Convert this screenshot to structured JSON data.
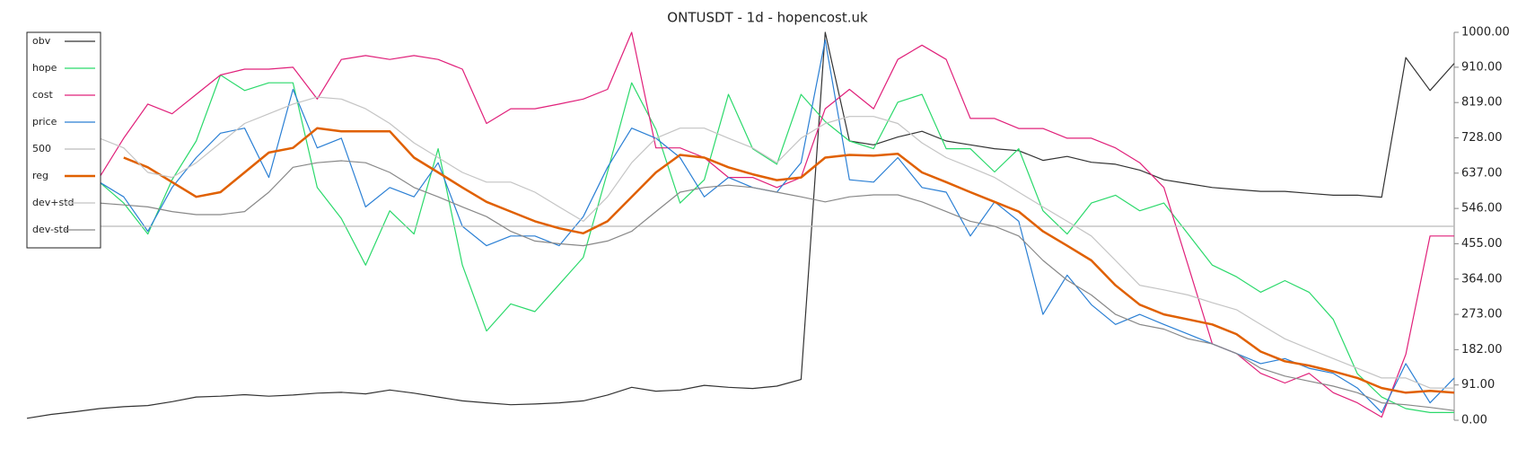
{
  "chart_data": {
    "type": "line",
    "title": "ONTUSDT - 1d - hopencost.uk",
    "ylim": [
      0,
      1000
    ],
    "yticks": [
      {
        "value": 0,
        "label": "0.00"
      },
      {
        "value": 91,
        "label": "91.00"
      },
      {
        "value": 182,
        "label": "182.00"
      },
      {
        "value": 273,
        "label": "273.00"
      },
      {
        "value": 364,
        "label": "364.00"
      },
      {
        "value": 455,
        "label": "455.00"
      },
      {
        "value": 546,
        "label": "546.00"
      },
      {
        "value": 637,
        "label": "637.00"
      },
      {
        "value": 728,
        "label": "728.00"
      },
      {
        "value": 819,
        "label": "819.00"
      },
      {
        "value": 910,
        "label": "910.00"
      },
      {
        "value": 1000,
        "label": "1000.00"
      }
    ],
    "legend": "upper left",
    "series": [
      {
        "name": "obv",
        "color": "#333333",
        "width": 1.2,
        "values": [
          5,
          15,
          22,
          30,
          35,
          38,
          48,
          60,
          62,
          66,
          62,
          65,
          70,
          72,
          68,
          78,
          70,
          60,
          50,
          45,
          40,
          42,
          45,
          50,
          65,
          85,
          75,
          78,
          90,
          85,
          82,
          88,
          105,
          1000,
          720,
          710,
          730,
          745,
          720,
          710,
          700,
          695,
          670,
          680,
          665,
          660,
          645,
          620,
          610,
          600,
          595,
          590,
          590,
          585,
          580,
          580,
          575,
          935,
          850,
          920
        ]
      },
      {
        "name": "hope",
        "color": "#2bd96b",
        "width": 1.2,
        "values": [
          null,
          null,
          null,
          614,
          560,
          480,
          620,
          720,
          890,
          850,
          870,
          870,
          600,
          520,
          400,
          540,
          480,
          700,
          400,
          230,
          300,
          280,
          350,
          420,
          640,
          870,
          750,
          560,
          620,
          840,
          700,
          660,
          840,
          770,
          720,
          700,
          820,
          840,
          700,
          700,
          640,
          700,
          540,
          480,
          560,
          580,
          540,
          560,
          480,
          400,
          370,
          330,
          360,
          330,
          260,
          120,
          60,
          30,
          20,
          20
        ]
      },
      {
        "name": "cost",
        "color": "#e0207a",
        "width": 1.2,
        "values": [
          null,
          null,
          null,
          626,
          727,
          815,
          790,
          840,
          890,
          905,
          905,
          910,
          828,
          930,
          940,
          930,
          940,
          930,
          905,
          765,
          803,
          803,
          815,
          828,
          853,
          1000,
          702,
          702,
          677,
          626,
          626,
          600,
          626,
          803,
          853,
          803,
          930,
          967,
          930,
          778,
          778,
          752,
          752,
          727,
          727,
          702,
          664,
          600,
          399,
          197,
          172,
          121,
          96,
          121,
          71,
          45,
          8,
          170,
          475,
          475
        ]
      },
      {
        "name": "price",
        "color": "#2a7fd4",
        "width": 1.2,
        "values": [
          null,
          null,
          null,
          614,
          576,
          487,
          600,
          677,
          740,
          753,
          626,
          853,
          702,
          727,
          550,
          600,
          576,
          664,
          500,
          450,
          475,
          475,
          450,
          525,
          652,
          753,
          727,
          677,
          576,
          626,
          600,
          588,
          664,
          980,
          620,
          614,
          677,
          600,
          588,
          475,
          563,
          513,
          273,
          374,
          298,
          247,
          273,
          247,
          222,
          197,
          172,
          146,
          159,
          134,
          121,
          83,
          20,
          146,
          45,
          109
        ]
      },
      {
        "name": "500",
        "color": "#bbbbbb",
        "width": 1.2,
        "values": [
          500,
          500,
          500,
          500,
          500,
          500,
          500,
          500,
          500,
          500,
          500,
          500,
          500,
          500,
          500,
          500,
          500,
          500,
          500,
          500,
          500,
          500,
          500,
          500,
          500,
          500,
          500,
          500,
          500,
          500,
          500,
          500,
          500,
          500,
          500,
          500,
          500,
          500,
          500,
          500,
          500,
          500,
          500,
          500,
          500,
          500,
          500,
          500,
          500,
          500,
          500,
          500,
          500,
          500,
          500,
          500,
          500,
          500,
          500,
          500
        ]
      },
      {
        "name": "reg",
        "color": "#e06000",
        "width": 2.5,
        "values": [
          null,
          null,
          null,
          null,
          677,
          652,
          614,
          576,
          588,
          639,
          690,
          702,
          753,
          745,
          745,
          745,
          677,
          639,
          600,
          563,
          538,
          513,
          495,
          482,
          513,
          576,
          639,
          684,
          677,
          652,
          634,
          619,
          626,
          677,
          684,
          682,
          687,
          639,
          614,
          588,
          563,
          538,
          487,
          450,
          412,
          348,
          298,
          273,
          260,
          247,
          222,
          177,
          152,
          141,
          126,
          109,
          83,
          71,
          76,
          71
        ]
      },
      {
        "name": "dev+std",
        "color": "#c4c4c4",
        "width": 1.2,
        "values": [
          null,
          null,
          null,
          727,
          702,
          639,
          626,
          664,
          715,
          765,
          790,
          815,
          833,
          828,
          803,
          765,
          715,
          677,
          639,
          614,
          614,
          588,
          550,
          513,
          576,
          664,
          727,
          753,
          753,
          727,
          702,
          664,
          727,
          765,
          783,
          783,
          765,
          715,
          677,
          652,
          626,
          588,
          550,
          513,
          475,
          412,
          348,
          336,
          323,
          303,
          285,
          247,
          210,
          184,
          159,
          134,
          109,
          109,
          83,
          83
        ]
      },
      {
        "name": "dev-std",
        "color": "#888888",
        "width": 1.2,
        "values": [
          null,
          null,
          null,
          560,
          555,
          550,
          538,
          530,
          530,
          538,
          588,
          652,
          664,
          669,
          664,
          639,
          600,
          576,
          550,
          525,
          487,
          462,
          455,
          450,
          462,
          487,
          538,
          588,
          600,
          606,
          600,
          588,
          576,
          563,
          576,
          581,
          581,
          563,
          538,
          513,
          500,
          475,
          412,
          361,
          323,
          273,
          247,
          235,
          210,
          197,
          172,
          134,
          114,
          101,
          88,
          71,
          45,
          40,
          33,
          25
        ]
      }
    ]
  }
}
